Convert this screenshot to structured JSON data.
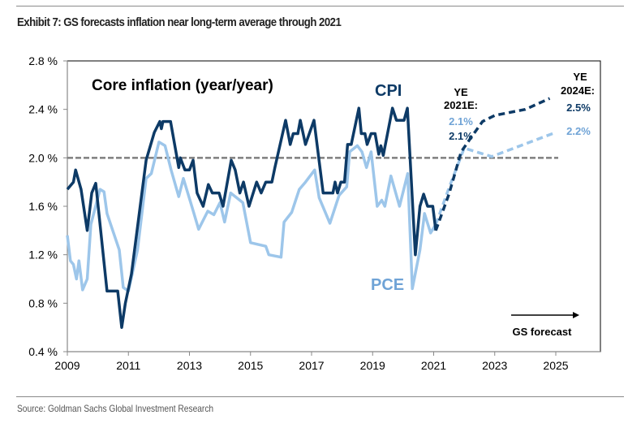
{
  "title": "Exhibit 7: GS forecasts inflation near long-term average through 2021",
  "source": "Source: Goldman Sachs Global Investment Research",
  "chart_data": {
    "type": "line",
    "title": "Core inflation (year/year)",
    "xlabel": "",
    "ylabel": "",
    "xlim": [
      2009,
      2025
    ],
    "ylim": [
      0.4,
      2.8
    ],
    "x_ticks": [
      "2009",
      "2011",
      "2013",
      "2015",
      "2017",
      "2019",
      "2021",
      "2023",
      "2025"
    ],
    "y_ticks": [
      "0.4 %",
      "0.8 %",
      "1.2 %",
      "1.6 %",
      "2.0 %",
      "2.4 %",
      "2.8 %"
    ],
    "grid": false,
    "reference_line": {
      "value": 2.0,
      "style": "dashed",
      "color": "#7f7f7f"
    },
    "series": [
      {
        "name": "CPI",
        "color": "#0d3a66",
        "style": "solid",
        "points": [
          [
            2009.0,
            1.74
          ],
          [
            2009.1,
            1.77
          ],
          [
            2009.2,
            1.8
          ],
          [
            2009.27,
            1.9
          ],
          [
            2009.45,
            1.74
          ],
          [
            2009.65,
            1.4
          ],
          [
            2009.8,
            1.71
          ],
          [
            2009.93,
            1.79
          ],
          [
            2010.1,
            1.38
          ],
          [
            2010.3,
            0.9
          ],
          [
            2010.65,
            0.9
          ],
          [
            2010.78,
            0.6
          ],
          [
            2010.9,
            0.8
          ],
          [
            2011.1,
            1.04
          ],
          [
            2011.58,
            1.98
          ],
          [
            2011.85,
            2.21
          ],
          [
            2012.03,
            2.3
          ],
          [
            2012.08,
            2.24
          ],
          [
            2012.13,
            2.3
          ],
          [
            2012.38,
            2.3
          ],
          [
            2012.65,
            1.92
          ],
          [
            2012.7,
            2.0
          ],
          [
            2012.85,
            1.9
          ],
          [
            2013.0,
            1.9
          ],
          [
            2013.12,
            1.98
          ],
          [
            2013.25,
            1.71
          ],
          [
            2013.45,
            1.6
          ],
          [
            2013.62,
            1.78
          ],
          [
            2013.75,
            1.71
          ],
          [
            2013.97,
            1.71
          ],
          [
            2014.1,
            1.6
          ],
          [
            2014.37,
            1.98
          ],
          [
            2014.5,
            1.9
          ],
          [
            2014.65,
            1.71
          ],
          [
            2014.77,
            1.8
          ],
          [
            2014.95,
            1.6
          ],
          [
            2015.2,
            1.8
          ],
          [
            2015.35,
            1.71
          ],
          [
            2015.5,
            1.8
          ],
          [
            2015.7,
            1.8
          ],
          [
            2015.8,
            1.92
          ],
          [
            2016.15,
            2.31
          ],
          [
            2016.3,
            2.11
          ],
          [
            2016.4,
            2.2
          ],
          [
            2016.55,
            2.2
          ],
          [
            2016.63,
            2.31
          ],
          [
            2016.8,
            2.11
          ],
          [
            2017.08,
            2.31
          ],
          [
            2017.38,
            1.71
          ],
          [
            2017.7,
            1.71
          ],
          [
            2017.77,
            1.8
          ],
          [
            2017.85,
            1.71
          ],
          [
            2017.96,
            1.8
          ],
          [
            2018.08,
            1.8
          ],
          [
            2018.18,
            2.11
          ],
          [
            2018.3,
            2.11
          ],
          [
            2018.55,
            2.41
          ],
          [
            2018.63,
            2.2
          ],
          [
            2018.75,
            2.2
          ],
          [
            2018.82,
            2.11
          ],
          [
            2018.95,
            2.2
          ],
          [
            2019.08,
            2.2
          ],
          [
            2019.2,
            2.03
          ],
          [
            2019.27,
            2.1
          ],
          [
            2019.35,
            2.02
          ],
          [
            2019.65,
            2.41
          ],
          [
            2019.78,
            2.31
          ],
          [
            2020.03,
            2.31
          ],
          [
            2020.14,
            2.41
          ],
          [
            2020.4,
            1.2
          ],
          [
            2020.55,
            1.6
          ],
          [
            2020.67,
            1.7
          ],
          [
            2020.8,
            1.6
          ],
          [
            2020.97,
            1.6
          ],
          [
            2021.07,
            1.4
          ]
        ]
      },
      {
        "name": "CPI forecast",
        "color": "#0d3a66",
        "style": "dashed",
        "points": [
          [
            2021.07,
            1.4
          ],
          [
            2021.5,
            1.7
          ],
          [
            2021.9,
            2.05
          ],
          [
            2022.2,
            2.16
          ],
          [
            2022.6,
            2.3
          ],
          [
            2023.0,
            2.35
          ],
          [
            2024.0,
            2.4
          ],
          [
            2024.8,
            2.49
          ]
        ]
      },
      {
        "name": "PCE",
        "color": "#9dc6ea",
        "style": "solid",
        "points": [
          [
            2009.0,
            1.36
          ],
          [
            2009.1,
            1.15
          ],
          [
            2009.2,
            1.12
          ],
          [
            2009.3,
            1.0
          ],
          [
            2009.38,
            1.15
          ],
          [
            2009.5,
            0.91
          ],
          [
            2009.65,
            1.0
          ],
          [
            2009.77,
            1.45
          ],
          [
            2010.07,
            1.74
          ],
          [
            2010.2,
            1.72
          ],
          [
            2010.3,
            1.54
          ],
          [
            2010.7,
            1.24
          ],
          [
            2010.83,
            0.93
          ],
          [
            2011.0,
            0.9
          ],
          [
            2011.3,
            1.24
          ],
          [
            2011.58,
            1.83
          ],
          [
            2011.75,
            1.87
          ],
          [
            2012.0,
            2.13
          ],
          [
            2012.2,
            2.1
          ],
          [
            2012.4,
            1.9
          ],
          [
            2012.65,
            1.68
          ],
          [
            2012.8,
            1.83
          ],
          [
            2013.1,
            1.58
          ],
          [
            2013.3,
            1.41
          ],
          [
            2013.6,
            1.56
          ],
          [
            2013.8,
            1.53
          ],
          [
            2014.0,
            1.63
          ],
          [
            2014.15,
            1.47
          ],
          [
            2014.35,
            1.71
          ],
          [
            2014.75,
            1.63
          ],
          [
            2015.0,
            1.3
          ],
          [
            2015.5,
            1.27
          ],
          [
            2015.6,
            1.2
          ],
          [
            2016.0,
            1.18
          ],
          [
            2016.1,
            1.47
          ],
          [
            2016.35,
            1.55
          ],
          [
            2016.6,
            1.74
          ],
          [
            2016.8,
            1.8
          ],
          [
            2017.1,
            1.9
          ],
          [
            2017.25,
            1.67
          ],
          [
            2017.6,
            1.46
          ],
          [
            2017.9,
            1.69
          ],
          [
            2018.15,
            1.76
          ],
          [
            2018.25,
            2.05
          ],
          [
            2018.5,
            2.1
          ],
          [
            2018.65,
            2.05
          ],
          [
            2018.8,
            1.92
          ],
          [
            2018.95,
            2.05
          ],
          [
            2019.15,
            1.6
          ],
          [
            2019.3,
            1.65
          ],
          [
            2019.4,
            1.6
          ],
          [
            2019.6,
            1.85
          ],
          [
            2019.88,
            1.6
          ],
          [
            2020.15,
            1.87
          ],
          [
            2020.3,
            0.92
          ],
          [
            2020.55,
            1.24
          ],
          [
            2020.7,
            1.54
          ],
          [
            2020.9,
            1.38
          ],
          [
            2021.07,
            1.45
          ]
        ]
      },
      {
        "name": "PCE forecast",
        "color": "#9dc6ea",
        "style": "dashed",
        "points": [
          [
            2021.07,
            1.45
          ],
          [
            2021.5,
            1.75
          ],
          [
            2022.0,
            2.08
          ],
          [
            2022.9,
            2.01
          ],
          [
            2025.0,
            2.21
          ]
        ]
      }
    ],
    "series_labels": {
      "cpi": "CPI",
      "pce": "PCE"
    },
    "annotations": {
      "ye2021_line1": "YE",
      "ye2021_line2": "2021E:",
      "ye2021_pce": "2.1%",
      "ye2021_cpi": "2.1%",
      "ye2024_line1": "YE",
      "ye2024_line2": "2024E:",
      "ye2024_cpi": "2.5%",
      "ye2024_pce": "2.2%",
      "forecast_label": "GS forecast"
    },
    "colors": {
      "cpi": "#0d3a66",
      "pce_line": "#9dc6ea",
      "pce_text": "#6fa3d6",
      "reference": "#7f7f7f"
    }
  }
}
